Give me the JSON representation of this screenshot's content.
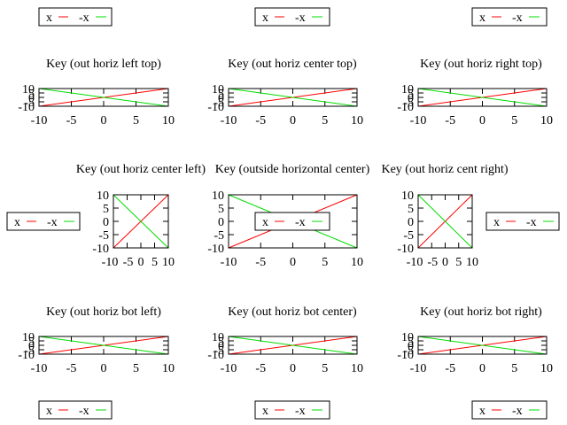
{
  "colors": {
    "series_x": "#ff0000",
    "series_neg_x": "#00dd00",
    "frame": "#000000",
    "background": "#ffffff"
  },
  "chart_data": [
    {
      "type": "line",
      "title": "Key (out horiz left top)",
      "key_position": "outside-top-left",
      "xlim": [
        -10,
        10
      ],
      "ylim": [
        -10,
        10
      ],
      "x_ticks": [
        "-10",
        "-5",
        "0",
        "5",
        "10"
      ],
      "y_ticks": [
        "10",
        "5",
        "0",
        "-5",
        "-10"
      ],
      "series": [
        {
          "name": "x",
          "color": "#ff0000",
          "x": [
            -10,
            10
          ],
          "y": [
            -10,
            10
          ]
        },
        {
          "name": "-x",
          "color": "#00dd00",
          "x": [
            -10,
            10
          ],
          "y": [
            10,
            -10
          ]
        }
      ]
    },
    {
      "type": "line",
      "title": "Key (out horiz center top)",
      "key_position": "outside-top-center",
      "xlim": [
        -10,
        10
      ],
      "ylim": [
        -10,
        10
      ],
      "x_ticks": [
        "-10",
        "-5",
        "0",
        "5",
        "10"
      ],
      "y_ticks": [
        "10",
        "5",
        "0",
        "-5",
        "-10"
      ],
      "series": [
        {
          "name": "x",
          "color": "#ff0000",
          "x": [
            -10,
            10
          ],
          "y": [
            -10,
            10
          ]
        },
        {
          "name": "-x",
          "color": "#00dd00",
          "x": [
            -10,
            10
          ],
          "y": [
            10,
            -10
          ]
        }
      ]
    },
    {
      "type": "line",
      "title": "Key (out horiz right top)",
      "key_position": "outside-top-right",
      "xlim": [
        -10,
        10
      ],
      "ylim": [
        -10,
        10
      ],
      "x_ticks": [
        "-10",
        "-5",
        "0",
        "5",
        "10"
      ],
      "y_ticks": [
        "10",
        "5",
        "0",
        "-5",
        "-10"
      ],
      "series": [
        {
          "name": "x",
          "color": "#ff0000",
          "x": [
            -10,
            10
          ],
          "y": [
            -10,
            10
          ]
        },
        {
          "name": "-x",
          "color": "#00dd00",
          "x": [
            -10,
            10
          ],
          "y": [
            10,
            -10
          ]
        }
      ]
    },
    {
      "type": "line",
      "title": "Key (out horiz center left)",
      "key_position": "outside-left",
      "xlim": [
        -10,
        10
      ],
      "ylim": [
        -10,
        10
      ],
      "x_ticks": [
        "-10",
        "-5",
        "0",
        "5",
        "10"
      ],
      "y_ticks": [
        "10",
        "5",
        "0",
        "-5",
        "-10"
      ],
      "series": [
        {
          "name": "x",
          "color": "#ff0000",
          "x": [
            -10,
            10
          ],
          "y": [
            -10,
            10
          ]
        },
        {
          "name": "-x",
          "color": "#00dd00",
          "x": [
            -10,
            10
          ],
          "y": [
            10,
            -10
          ]
        }
      ]
    },
    {
      "type": "line",
      "title": "Key (outside horizontal center)",
      "key_position": "center",
      "xlim": [
        -10,
        10
      ],
      "ylim": [
        -10,
        10
      ],
      "x_ticks": [
        "-10",
        "-5",
        "0",
        "5",
        "10"
      ],
      "y_ticks": [
        "10",
        "5",
        "0",
        "-5",
        "-10"
      ],
      "series": [
        {
          "name": "x",
          "color": "#ff0000",
          "x": [
            -10,
            10
          ],
          "y": [
            -10,
            10
          ]
        },
        {
          "name": "-x",
          "color": "#00dd00",
          "x": [
            -10,
            10
          ],
          "y": [
            10,
            -10
          ]
        }
      ]
    },
    {
      "type": "line",
      "title": "Key (out horiz cent right)",
      "key_position": "outside-right",
      "xlim": [
        -10,
        10
      ],
      "ylim": [
        -10,
        10
      ],
      "x_ticks": [
        "-10",
        "-5",
        "0",
        "5",
        "10"
      ],
      "y_ticks": [
        "10",
        "5",
        "0",
        "-5",
        "-10"
      ],
      "series": [
        {
          "name": "x",
          "color": "#ff0000",
          "x": [
            -10,
            10
          ],
          "y": [
            -10,
            10
          ]
        },
        {
          "name": "-x",
          "color": "#00dd00",
          "x": [
            -10,
            10
          ],
          "y": [
            10,
            -10
          ]
        }
      ]
    },
    {
      "type": "line",
      "title": "Key (out horiz bot left)",
      "key_position": "outside-bottom-left",
      "xlim": [
        -10,
        10
      ],
      "ylim": [
        -10,
        10
      ],
      "x_ticks": [
        "-10",
        "-5",
        "0",
        "5",
        "10"
      ],
      "y_ticks": [
        "10",
        "5",
        "0",
        "-5",
        "-10"
      ],
      "series": [
        {
          "name": "x",
          "color": "#ff0000",
          "x": [
            -10,
            10
          ],
          "y": [
            -10,
            10
          ]
        },
        {
          "name": "-x",
          "color": "#00dd00",
          "x": [
            -10,
            10
          ],
          "y": [
            10,
            -10
          ]
        }
      ]
    },
    {
      "type": "line",
      "title": "Key (out horiz bot center)",
      "key_position": "outside-bottom-center",
      "xlim": [
        -10,
        10
      ],
      "ylim": [
        -10,
        10
      ],
      "x_ticks": [
        "-10",
        "-5",
        "0",
        "5",
        "10"
      ],
      "y_ticks": [
        "10",
        "5",
        "0",
        "-5",
        "-10"
      ],
      "series": [
        {
          "name": "x",
          "color": "#ff0000",
          "x": [
            -10,
            10
          ],
          "y": [
            -10,
            10
          ]
        },
        {
          "name": "-x",
          "color": "#00dd00",
          "x": [
            -10,
            10
          ],
          "y": [
            10,
            -10
          ]
        }
      ]
    },
    {
      "type": "line",
      "title": "Key (out horiz bot right)",
      "key_position": "outside-bottom-right",
      "xlim": [
        -10,
        10
      ],
      "ylim": [
        -10,
        10
      ],
      "x_ticks": [
        "-10",
        "-5",
        "0",
        "5",
        "10"
      ],
      "y_ticks": [
        "10",
        "5",
        "0",
        "-5",
        "-10"
      ],
      "series": [
        {
          "name": "x",
          "color": "#ff0000",
          "x": [
            -10,
            10
          ],
          "y": [
            -10,
            10
          ]
        },
        {
          "name": "-x",
          "color": "#00dd00",
          "x": [
            -10,
            10
          ],
          "y": [
            10,
            -10
          ]
        }
      ]
    }
  ]
}
